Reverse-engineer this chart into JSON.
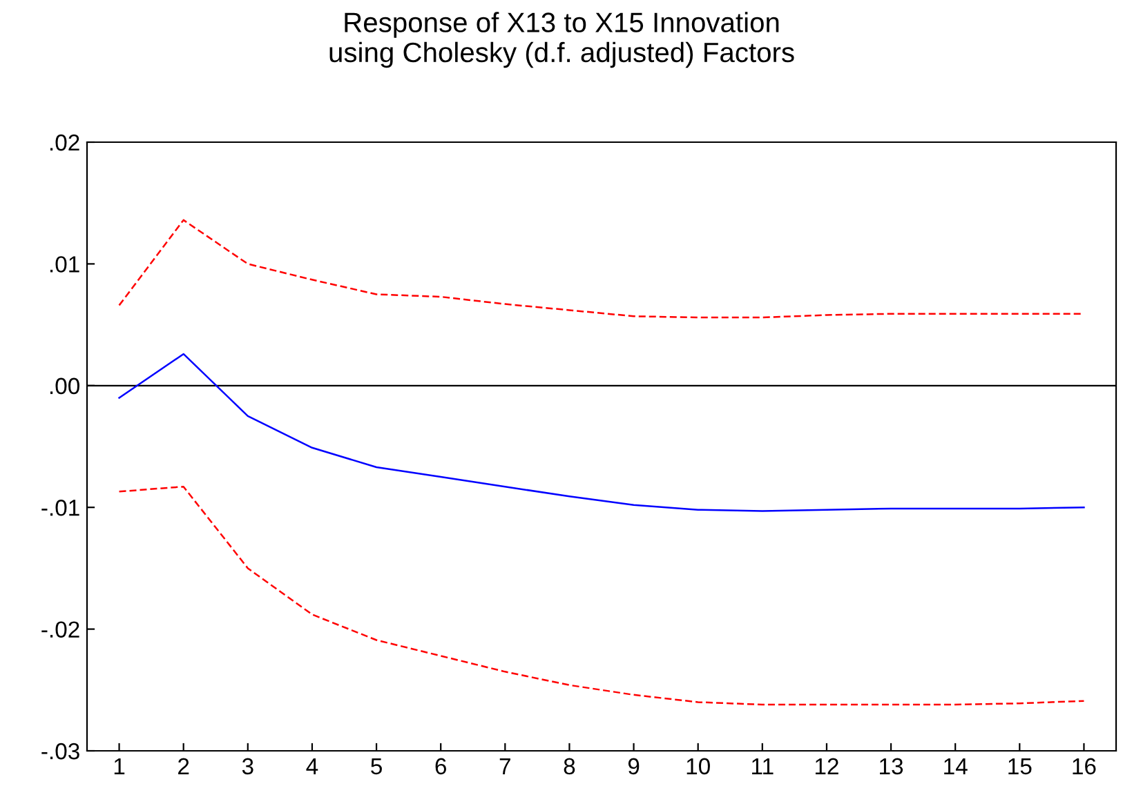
{
  "chart_data": {
    "type": "line",
    "title": "Response of X13 to X15 Innovation\nusing Cholesky (d.f. adjusted) Factors",
    "categories": [
      "1",
      "2",
      "3",
      "4",
      "5",
      "6",
      "7",
      "8",
      "9",
      "10",
      "11",
      "12",
      "13",
      "14",
      "15",
      "16"
    ],
    "series": [
      {
        "color": "#ff0000",
        "line_style": "dashed",
        "values": [
          0.0066,
          0.0136,
          0.01,
          0.0087,
          0.0075,
          0.0073,
          0.0067,
          0.0062,
          0.0057,
          0.0056,
          0.0056,
          0.0058,
          0.0059,
          0.0059,
          0.0059,
          0.0059
        ]
      },
      {
        "color": "#0000ff",
        "line_style": "solid",
        "values": [
          -0.001,
          0.0026,
          -0.0025,
          -0.0051,
          -0.0067,
          -0.0075,
          -0.0083,
          -0.0091,
          -0.0098,
          -0.0102,
          -0.0103,
          -0.0102,
          -0.0101,
          -0.0101,
          -0.0101,
          -0.01
        ]
      },
      {
        "color": "#ff0000",
        "line_style": "dashed",
        "values": [
          -0.0087,
          -0.0083,
          -0.015,
          -0.0188,
          -0.0209,
          -0.0222,
          -0.0235,
          -0.0246,
          -0.0254,
          -0.026,
          -0.0262,
          -0.0262,
          -0.0262,
          -0.0262,
          -0.0261,
          -0.0259
        ]
      }
    ],
    "ylim": [
      -0.03,
      0.02
    ],
    "yticks": [
      {
        "value": -0.03,
        "label": "-.03"
      },
      {
        "value": -0.02,
        "label": "-.02"
      },
      {
        "value": -0.01,
        "label": "-.01"
      },
      {
        "value": 0.0,
        "label": ".00"
      },
      {
        "value": 0.01,
        "label": ".01"
      },
      {
        "value": 0.02,
        "label": ".02"
      }
    ],
    "ref_lines": [
      {
        "axis": "y",
        "value": 0.0,
        "color": "#000000"
      }
    ],
    "grid": false,
    "legend": false,
    "marker": "none"
  }
}
